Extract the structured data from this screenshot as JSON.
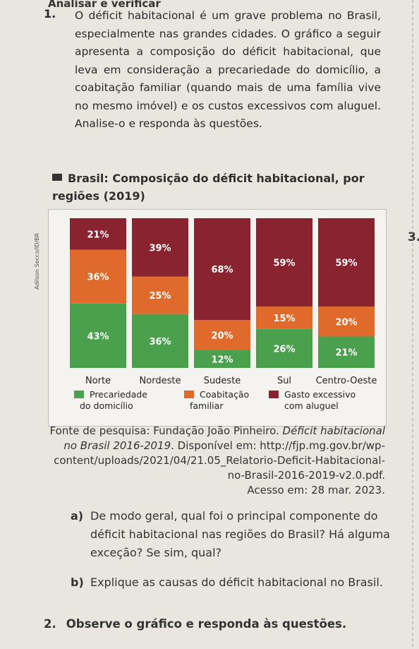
{
  "section_heading": "Analisar e verificar",
  "question1": {
    "number": "1.",
    "text": "O déficit habitacional é um grave problema no Brasil, especialmente nas grandes cidades. O gráfico a seguir apresenta a composição do déficit habitacional, que leva em consideração a precariedade do domicílio, a coabitação familiar (quando mais de uma família vive no mesmo imóvel) e os custos excessivos com aluguel. Analise-o e responda às questões."
  },
  "image_credit": "Adilson Secco/ID/BR",
  "side_number": "3.",
  "colors": {
    "precariedade": "#4aa04c",
    "coabitacao": "#e06a2c",
    "gasto": "#8a2330"
  },
  "chart_data": {
    "type": "bar",
    "stacked": true,
    "percent_stacked": true,
    "title": "Brasil: Composição do déficit habitacional, por regiões (2019)",
    "categories": [
      "Norte",
      "Nordeste",
      "Sudeste",
      "Sul",
      "Centro-Oeste"
    ],
    "series": [
      {
        "name": "Precariedade do domicílio",
        "values": [
          43,
          36,
          12,
          26,
          21
        ]
      },
      {
        "name": "Coabitação familiar",
        "values": [
          36,
          25,
          20,
          15,
          20
        ]
      },
      {
        "name": "Gasto excessivo com aluguel",
        "values": [
          21,
          39,
          68,
          59,
          59
        ]
      }
    ],
    "value_labels": [
      [
        "43%",
        "36%",
        "12%",
        "26%",
        "21%"
      ],
      [
        "36%",
        "25%",
        "20%",
        "15%",
        "20%"
      ],
      [
        "21%",
        "39%",
        "68%",
        "59%",
        "59%"
      ]
    ],
    "ylim": [
      0,
      100
    ],
    "legend": [
      {
        "line1": "Precariedade",
        "line2": "do domicílio"
      },
      {
        "line1": "Coabitação",
        "line2": "familiar"
      },
      {
        "line1": "Gasto excessivo",
        "line2": "com aluguel"
      }
    ],
    "legend_position": "bottom",
    "grid": false
  },
  "source": {
    "prefix": "Fonte de pesquisa: Fundação João Pinheiro. ",
    "title_italic": "Déficit habitacional no Brasil 2016-2019",
    "rest": ". Disponível em: http://fjp.mg.gov.br/wp-content/uploads/2021/04/21.05_Relatorio-Deficit-Habitacional-no-Brasil-2016-2019-v2.0.pdf.",
    "access": "Acesso em: 28 mar. 2023."
  },
  "subquestions": [
    {
      "letter": "a)",
      "text": "De modo geral, qual foi o principal componente do déficit habitacional nas regiões do Brasil? Há alguma exceção? Se sim, qual?"
    },
    {
      "letter": "b)",
      "text": "Explique as causas do déficit habitacional no Brasil."
    }
  ],
  "question2": {
    "number": "2.",
    "text": "Observe o gráfico e responda às questões."
  }
}
